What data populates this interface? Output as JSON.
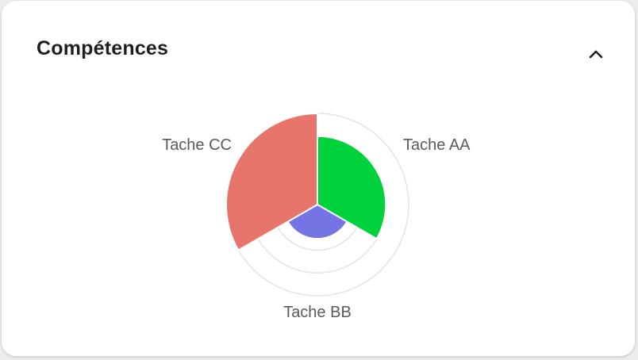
{
  "card": {
    "title": "Compétences"
  },
  "icons": {
    "collapse": "chevron-up-icon"
  },
  "chart_data": {
    "type": "polar-area",
    "categories": [
      "Tache AA",
      "Tache BB",
      "Tache CC"
    ],
    "values": [
      3,
      1.5,
      4
    ],
    "rmax": 4,
    "ring_levels": [
      2,
      3
    ],
    "colors": [
      "#00d23c",
      "#7574e4",
      "#e8756c"
    ],
    "grid": true
  }
}
